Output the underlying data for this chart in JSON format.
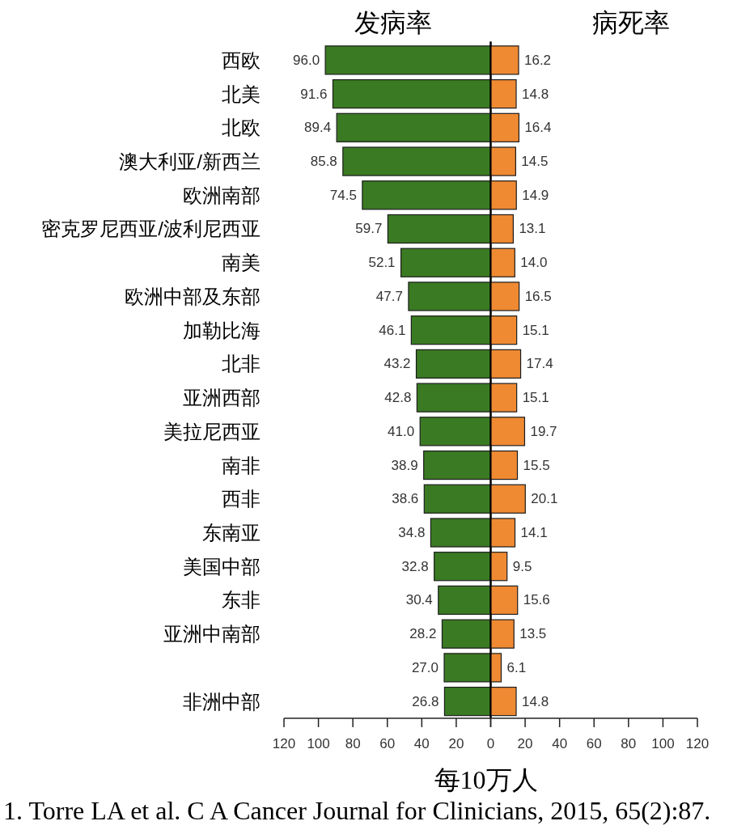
{
  "chart_data": [
    {
      "type": "bar",
      "orientation": "horizontal",
      "title": "发病率",
      "xlabel": "每10万人",
      "categories": [
        "西欧",
        "北美",
        "北欧",
        "澳大利亚/新西兰",
        "欧洲南部",
        "密克罗尼西亚/波利尼西亚",
        "南美",
        "欧洲中部及东部",
        "加勒比海",
        "北非",
        "亚洲西部",
        "美拉尼西亚",
        "南非",
        "西非",
        "东南亚",
        "美国中部",
        "东非",
        "亚洲中南部",
        null,
        "非洲中部"
      ],
      "values": [
        96.0,
        91.6,
        89.4,
        85.8,
        74.5,
        59.7,
        52.1,
        47.7,
        46.1,
        43.2,
        42.8,
        41.0,
        38.9,
        38.6,
        34.8,
        32.8,
        30.4,
        28.2,
        27.0,
        26.8
      ],
      "value_labels": [
        "96.0",
        "91.6",
        "89.4",
        "85.8",
        "74.5",
        "59.7",
        "52.1",
        "47.7",
        "46.1",
        "43.2",
        "42.8",
        "41.0",
        "38.9",
        "38.6",
        "34.8",
        "32.8",
        "30.4",
        "28.2",
        "27.0",
        "26.8"
      ],
      "color": "#3a7a23",
      "xlim": [
        120,
        0
      ],
      "xticks": [
        120,
        100,
        80,
        60,
        40,
        20,
        {
          "value": 0,
          "label": null
        }
      ],
      "annotations": [
        "1. Torre LA et al. C A Cancer Journal for Clinicians, 2015, 65(2):87."
      ]
    },
    {
      "type": "bar",
      "orientation": "horizontal",
      "title": "病死率",
      "categories": [
        null,
        null,
        null,
        null,
        null,
        null,
        null,
        null,
        null,
        null,
        null,
        null,
        null,
        null,
        null,
        null,
        null,
        null,
        null,
        null
      ],
      "values": [
        16.2,
        14.8,
        16.4,
        14.5,
        14.9,
        13.1,
        14.0,
        16.5,
        15.1,
        17.4,
        15.1,
        19.7,
        15.5,
        20.1,
        14.1,
        9.5,
        15.6,
        13.5,
        6.1,
        14.8
      ],
      "value_labels": [
        "16.2",
        "14.8",
        "16.4",
        "14.5",
        "14.9",
        "13.1",
        "14.0",
        "16.5",
        "15.1",
        "17.4",
        "15.1",
        "19.7",
        "15.5",
        "20.1",
        "14.1",
        "9.5",
        "15.6",
        "13.5",
        "6.1",
        "14.8"
      ],
      "color": "#ef8a33",
      "xlim": [
        0,
        120
      ],
      "xticks": [
        0,
        20,
        40,
        60,
        80,
        100,
        120
      ]
    }
  ]
}
